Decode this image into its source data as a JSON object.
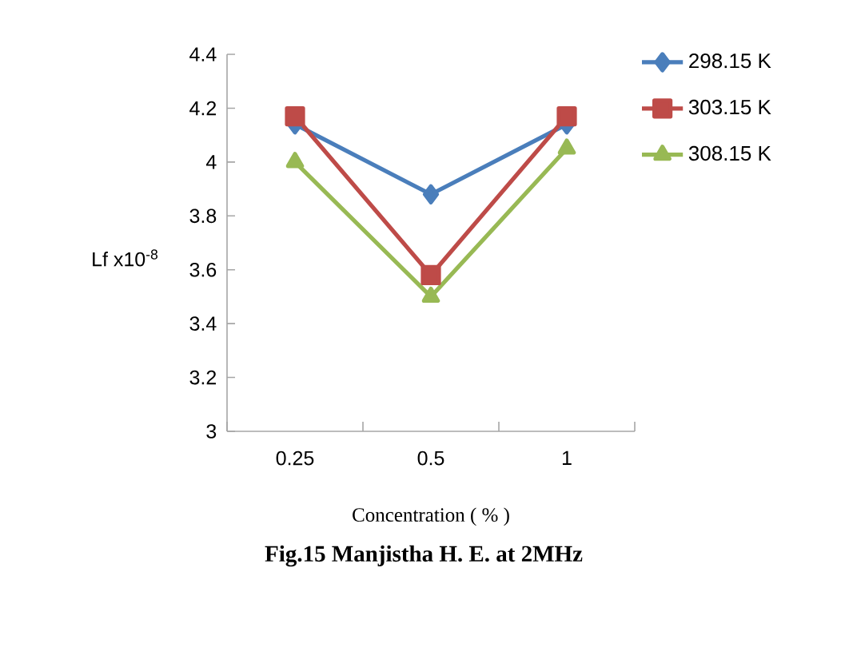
{
  "chart_data": {
    "type": "line",
    "title": "Fig.15 Manjistha H. E. at 2MHz",
    "xlabel": "Concentration ( % )",
    "ylabel": "Lf x10$^{-8}$",
    "categories": [
      "0.25",
      "0.5",
      "1"
    ],
    "series": [
      {
        "name": "298.15 K",
        "color": "#4a7ebb",
        "marker": "diamond",
        "values": [
          4.14,
          3.88,
          4.14
        ]
      },
      {
        "name": "303.15 K",
        "color": "#be4b48",
        "marker": "square",
        "values": [
          4.17,
          3.58,
          4.17
        ]
      },
      {
        "name": "308.15 K",
        "color": "#98b954",
        "marker": "triangle",
        "values": [
          4.0,
          3.5,
          4.05
        ]
      }
    ],
    "ylim": [
      3,
      4.4
    ],
    "yticks": [
      3,
      3.2,
      3.4,
      3.6,
      3.8,
      4,
      4.2,
      4.4
    ],
    "grid": false,
    "legend": "top right",
    "line_style": "solid"
  }
}
